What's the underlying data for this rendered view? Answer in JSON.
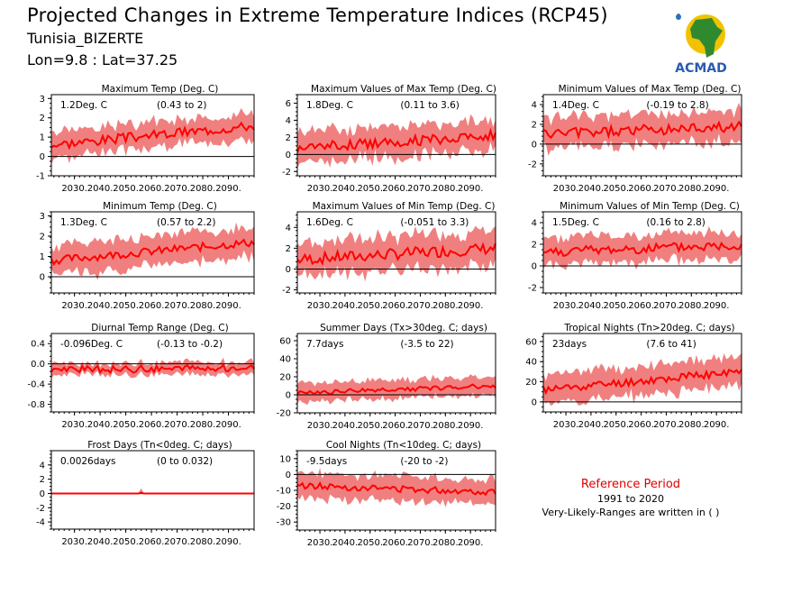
{
  "title": "Projected Changes in Extreme Temperature Indices (RCP45)",
  "location": "Tunisia_BIZERTE",
  "coords": "Lon=9.8 : Lat=37.25",
  "logo_text": "ACMAD",
  "reference": {
    "title": "Reference Period",
    "years": "1991 to 2020",
    "note": "Very-Likely-Ranges are written in ( )"
  },
  "colors": {
    "line": "#ff0000",
    "band": "#f08080",
    "text_ref": "#e00000"
  },
  "chart_data": [
    {
      "type": "line",
      "title": "Maximum Temp (Deg. C)",
      "mean_label": "1.2Deg. C",
      "range_label": "(0.43 to 2)",
      "x_range": [
        2021,
        2100
      ],
      "xticks": [
        2030,
        2040,
        2050,
        2060,
        2070,
        2080,
        2090
      ],
      "ylim": [
        -1.0,
        3.2
      ],
      "yticks": [
        -1.0,
        0.0,
        1.0,
        2.0,
        3.0
      ],
      "series": [
        {
          "kind": "mean",
          "start": 0.6,
          "end": 1.6,
          "noise": 0.25
        },
        {
          "kind": "range",
          "half_width": 0.7
        }
      ]
    },
    {
      "type": "line",
      "title": "Maximum Values of Max Temp (Deg. C)",
      "mean_label": "1.8Deg. C",
      "range_label": "(0.11 to 3.6)",
      "x_range": [
        2021,
        2100
      ],
      "xticks": [
        2030,
        2040,
        2050,
        2060,
        2070,
        2080,
        2090
      ],
      "ylim": [
        -2.5,
        7.0
      ],
      "yticks": [
        -2.0,
        0.0,
        2.0,
        4.0,
        6.0
      ],
      "series": [
        {
          "kind": "mean",
          "start": 0.8,
          "end": 2.2,
          "noise": 0.6
        },
        {
          "kind": "range",
          "half_width": 1.9
        }
      ]
    },
    {
      "type": "line",
      "title": "Minimum Values of Max Temp (Deg. C)",
      "mean_label": "1.4Deg. C",
      "range_label": "(-0.19 to 2.8)",
      "x_range": [
        2021,
        2100
      ],
      "xticks": [
        2030,
        2040,
        2050,
        2060,
        2070,
        2080,
        2090
      ],
      "ylim": [
        -3.2,
        5.0
      ],
      "yticks": [
        -2.0,
        0.0,
        2.0,
        4.0
      ],
      "series": [
        {
          "kind": "mean",
          "start": 1.0,
          "end": 1.8,
          "noise": 0.55
        },
        {
          "kind": "range",
          "half_width": 1.6
        }
      ]
    },
    {
      "type": "line",
      "title": "Minimum Temp (Deg. C)",
      "mean_label": "1.3Deg. C",
      "range_label": "(0.57 to 2.2)",
      "x_range": [
        2021,
        2100
      ],
      "xticks": [
        2030,
        2040,
        2050,
        2060,
        2070,
        2080,
        2090
      ],
      "ylim": [
        -0.8,
        3.2
      ],
      "yticks": [
        0.0,
        1.0,
        2.0,
        3.0
      ],
      "series": [
        {
          "kind": "mean",
          "start": 0.8,
          "end": 1.7,
          "noise": 0.2
        },
        {
          "kind": "range",
          "half_width": 0.75
        }
      ]
    },
    {
      "type": "line",
      "title": "Maximum Values of Min Temp (Deg. C)",
      "mean_label": "1.6Deg. C",
      "range_label": "(-0.051 to 3.3)",
      "x_range": [
        2021,
        2100
      ],
      "xticks": [
        2030,
        2040,
        2050,
        2060,
        2070,
        2080,
        2090
      ],
      "ylim": [
        -2.3,
        5.5
      ],
      "yticks": [
        -2.0,
        0.0,
        2.0,
        4.0
      ],
      "series": [
        {
          "kind": "mean",
          "start": 0.9,
          "end": 2.0,
          "noise": 0.55
        },
        {
          "kind": "range",
          "half_width": 1.7
        }
      ]
    },
    {
      "type": "line",
      "title": "Minimum Values of Min Temp (Deg. C)",
      "mean_label": "1.5Deg. C",
      "range_label": "(0.16 to 2.8)",
      "x_range": [
        2021,
        2100
      ],
      "xticks": [
        2030,
        2040,
        2050,
        2060,
        2070,
        2080,
        2090
      ],
      "ylim": [
        -2.5,
        5.0
      ],
      "yticks": [
        -2.0,
        0.0,
        2.0,
        4.0
      ],
      "series": [
        {
          "kind": "mean",
          "start": 1.3,
          "end": 1.9,
          "noise": 0.45
        },
        {
          "kind": "range",
          "half_width": 1.3
        }
      ]
    },
    {
      "type": "line",
      "title": "Diurnal Temp Range (Deg. C)",
      "mean_label": "-0.096Deg. C",
      "range_label": "(-0.13 to -0.2)",
      "x_range": [
        2021,
        2100
      ],
      "xticks": [
        2030,
        2040,
        2050,
        2060,
        2070,
        2080,
        2090
      ],
      "ylim": [
        -0.95,
        0.6
      ],
      "yticks": [
        -0.8,
        -0.4,
        0.0,
        0.4
      ],
      "series": [
        {
          "kind": "mean",
          "start": -0.12,
          "end": -0.08,
          "noise": 0.07
        },
        {
          "kind": "range",
          "half_width": 0.12
        }
      ]
    },
    {
      "type": "line",
      "title": "Summer Days (Tx>30deg. C; days)",
      "mean_label": "7.7days",
      "range_label": "(-3.5 to 22)",
      "x_range": [
        2021,
        2100
      ],
      "xticks": [
        2030,
        2040,
        2050,
        2060,
        2070,
        2080,
        2090
      ],
      "ylim": [
        -20,
        68
      ],
      "yticks": [
        -20,
        0,
        20,
        40,
        60
      ],
      "series": [
        {
          "kind": "mean",
          "start": 2,
          "end": 10,
          "noise": 2.5
        },
        {
          "kind": "range",
          "half_width": 11
        }
      ]
    },
    {
      "type": "line",
      "title": "Tropical Nights (Tn>20deg. C; days)",
      "mean_label": "23days",
      "range_label": "(7.6 to 41)",
      "x_range": [
        2021,
        2100
      ],
      "xticks": [
        2030,
        2040,
        2050,
        2060,
        2070,
        2080,
        2090
      ],
      "ylim": [
        -10,
        68
      ],
      "yticks": [
        0,
        20,
        40,
        60
      ],
      "series": [
        {
          "kind": "mean",
          "start": 12,
          "end": 30,
          "noise": 4
        },
        {
          "kind": "range",
          "half_width": 15
        }
      ]
    },
    {
      "type": "line",
      "title": "Frost Days (Tn<0deg. C; days)",
      "mean_label": "0.0026days",
      "range_label": "(0 to 0.032)",
      "x_range": [
        2021,
        2100
      ],
      "xticks": [
        2030,
        2040,
        2050,
        2060,
        2070,
        2080,
        2090
      ],
      "ylim": [
        -5.0,
        6.0
      ],
      "yticks": [
        -4.0,
        -2.0,
        0.0,
        2.0,
        4.0
      ],
      "series": [
        {
          "kind": "mean",
          "start": 0.0,
          "end": 0.0,
          "noise": 0.0
        },
        {
          "kind": "range",
          "half_width": 0.1
        }
      ]
    },
    {
      "type": "line",
      "title": "Cool Nights (Tn<10deg. C; days)",
      "mean_label": "-9.5days",
      "range_label": "(-20 to -2)",
      "x_range": [
        2021,
        2100
      ],
      "xticks": [
        2030,
        2040,
        2050,
        2060,
        2070,
        2080,
        2090
      ],
      "ylim": [
        -35,
        15
      ],
      "yticks": [
        -30,
        -20,
        -10,
        0,
        10
      ],
      "series": [
        {
          "kind": "mean",
          "start": -7,
          "end": -11,
          "noise": 2
        },
        {
          "kind": "range",
          "half_width": 8
        }
      ]
    }
  ]
}
